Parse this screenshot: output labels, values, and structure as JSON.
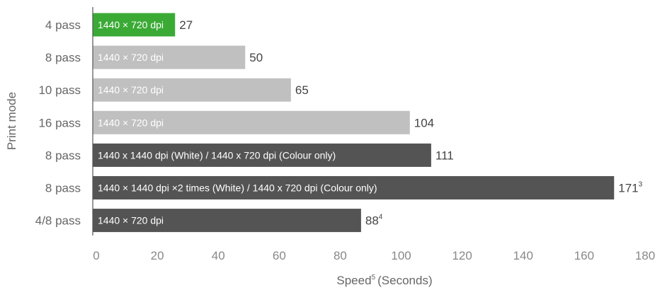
{
  "chart_data": {
    "type": "bar",
    "orientation": "horizontal",
    "ylabel": "Print mode",
    "xlabel": "Speed",
    "xlabel_superscript": "5",
    "xlabel_suffix": "(Seconds)",
    "xlim": [
      0,
      180
    ],
    "xticks": [
      0,
      20,
      40,
      60,
      80,
      100,
      120,
      140,
      160,
      180
    ],
    "grid": false,
    "bars": [
      {
        "category": "4 pass",
        "bar_label": "1440 × 720 dpi",
        "value": 27,
        "value_label": "27",
        "footnote": "",
        "color": "#3aaa35"
      },
      {
        "category": "8 pass",
        "bar_label": "1440 × 720 dpi",
        "value": 50,
        "value_label": "50",
        "footnote": "",
        "color": "#c0c0c0"
      },
      {
        "category": "10 pass",
        "bar_label": "1440 × 720 dpi",
        "value": 65,
        "value_label": "65",
        "footnote": "",
        "color": "#c0c0c0"
      },
      {
        "category": "16 pass",
        "bar_label": "1440 × 720 dpi",
        "value": 104,
        "value_label": "104",
        "footnote": "",
        "color": "#c0c0c0"
      },
      {
        "category": "8 pass",
        "bar_label": "1440 x 1440 dpi (White) / 1440 x 720 dpi (Colour only)",
        "value": 111,
        "value_label": "111",
        "footnote": "",
        "color": "#545454"
      },
      {
        "category": "8 pass",
        "bar_label": "1440 × 1440 dpi ×2 times (White) / 1440 x 720 dpi (Colour only)",
        "value": 171,
        "value_label": "171",
        "footnote": "3",
        "color": "#545454"
      },
      {
        "category": "4/8 pass",
        "bar_label": "1440 × 720 dpi",
        "value": 88,
        "value_label": "88",
        "footnote": "4",
        "color": "#545454"
      }
    ]
  }
}
